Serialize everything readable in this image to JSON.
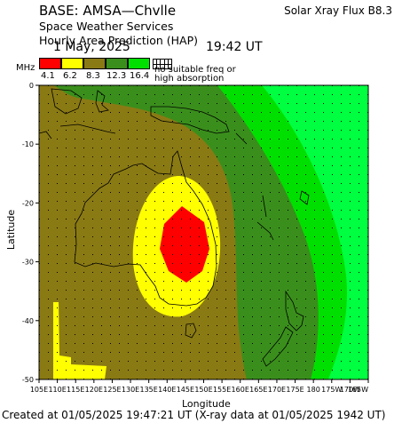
{
  "header": {
    "title": "BASE: AMSA—Chvlle",
    "subtitle_1": "Space Weather Services",
    "subtitle_2": "Hourly Area Prediction (HAP)",
    "date": "1 May, 2025",
    "time": "19:42 UT",
    "xray": "Solar Xray Flux B8.3"
  },
  "legend": {
    "unit": "MHz",
    "labels": [
      "4.1",
      "6.2",
      "8.3",
      "12.3",
      "16.4"
    ],
    "colors": [
      "#ff0000",
      "#ffff00",
      "#8a7a14",
      "#3a8f1c",
      "#00e000"
    ],
    "note_line_1": "no suitable freq or",
    "note_line_2": "high absorption"
  },
  "map": {
    "colors": {
      "red": "#ff0000",
      "yellow": "#ffff00",
      "olive": "#8a7a14",
      "dark_green": "#3a8f1c",
      "green": "#00e000",
      "lime": "#00ff40",
      "coast": "#000000",
      "grid_dots": "#000000"
    }
  },
  "axes": {
    "y_label": "Latitude",
    "x_label": "Longitude",
    "y_ticks": [
      "0",
      "-10",
      "-20",
      "-30",
      "-40",
      "-50"
    ],
    "x_ticks": [
      "105E",
      "110E",
      "115E",
      "120E",
      "125E",
      "130E",
      "135E",
      "140E",
      "145E",
      "150E",
      "155E",
      "160E",
      "165E",
      "170E",
      "175E",
      "180",
      "175W",
      "170W",
      "165W"
    ]
  },
  "footer": {
    "text": "Created at 01/05/2025 19:47:21 UT (X-ray data at 01/05/2025 1942 UT)"
  }
}
